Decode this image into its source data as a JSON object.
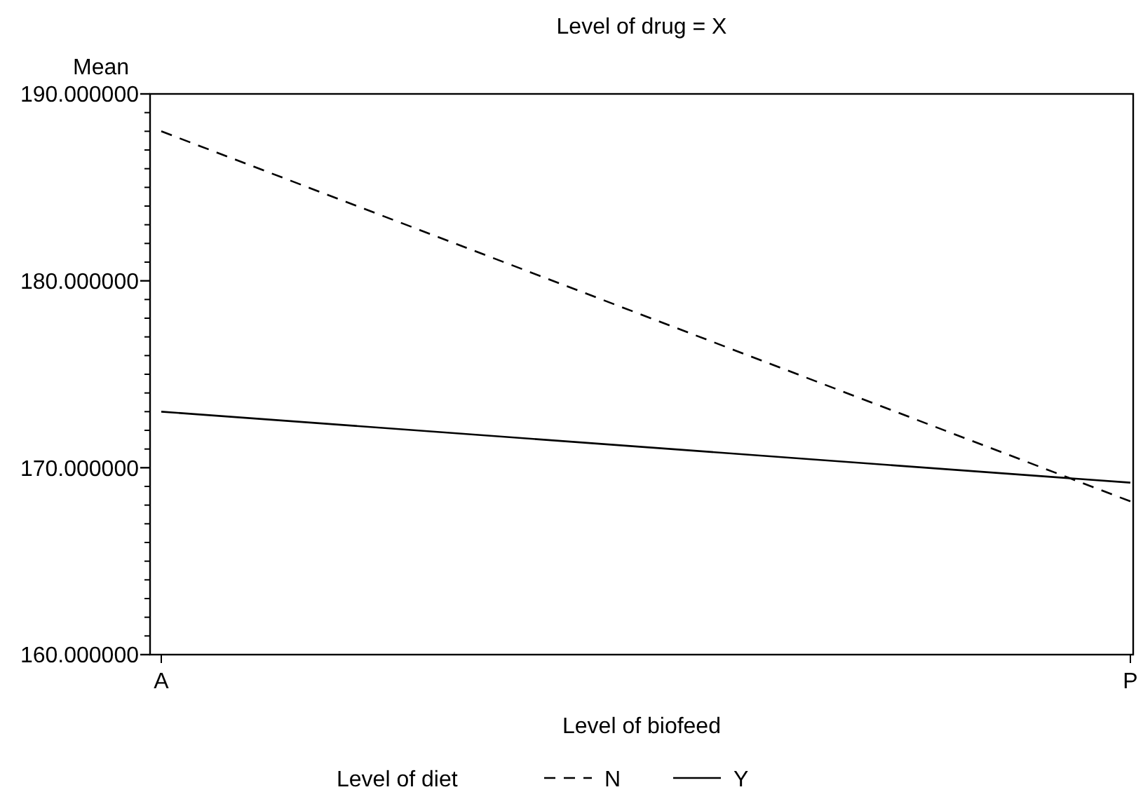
{
  "chart_data": {
    "type": "line",
    "title": "Level of drug = X",
    "xlabel": "Level of biofeed",
    "ylabel": "Mean",
    "legend_title": "Level of diet",
    "legend": "bottom",
    "categories": [
      "A",
      "P"
    ],
    "series": [
      {
        "name": "N",
        "color": "#000000",
        "line_style": "dashed",
        "values": [
          188.0,
          168.2
        ]
      },
      {
        "name": "Y",
        "color": "#000000",
        "line_style": "solid",
        "values": [
          173.0,
          169.2
        ]
      }
    ],
    "ylim": [
      160,
      190
    ],
    "yticks": [
      {
        "value": 160,
        "label": "160.000000"
      },
      {
        "value": 170,
        "label": "170.000000"
      },
      {
        "value": 180,
        "label": "180.000000"
      },
      {
        "value": 190,
        "label": "190.000000"
      }
    ],
    "grid": false
  }
}
